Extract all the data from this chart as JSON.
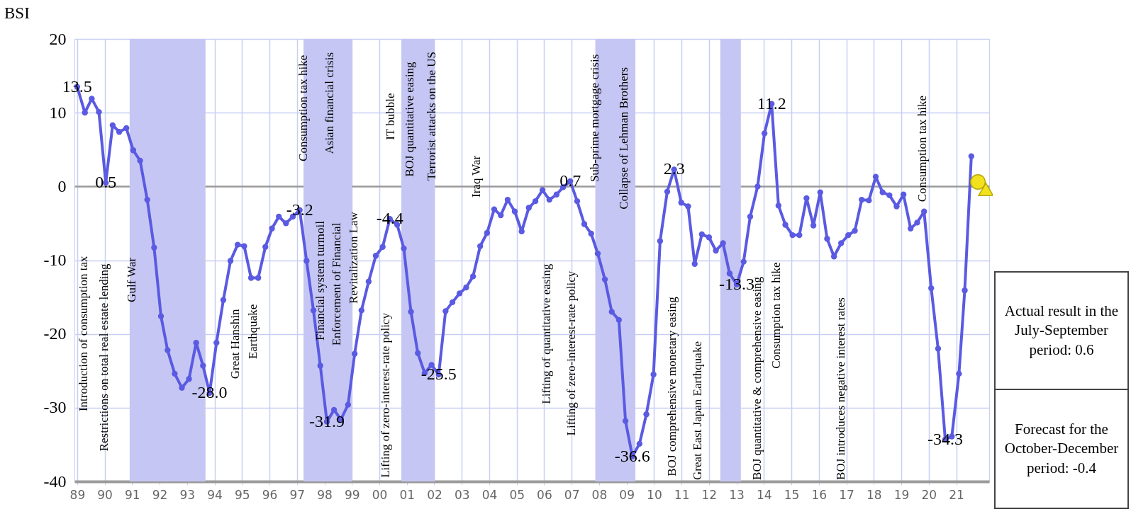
{
  "chart_data": {
    "type": "line",
    "ylabel": "BSI",
    "grid": true,
    "marker": "circle",
    "xlim": [
      1988.9,
      2022.2
    ],
    "ylim": [
      -40,
      20
    ],
    "yticks": [
      -40,
      -30,
      -20,
      -10,
      0,
      10,
      20
    ],
    "xticks": [
      {
        "value": 1989,
        "label": "89"
      },
      {
        "value": 1990,
        "label": "90"
      },
      {
        "value": 1991,
        "label": "91"
      },
      {
        "value": 1992,
        "label": "92"
      },
      {
        "value": 1993,
        "label": "93"
      },
      {
        "value": 1994,
        "label": "94"
      },
      {
        "value": 1995,
        "label": "95"
      },
      {
        "value": 1996,
        "label": "96"
      },
      {
        "value": 1997,
        "label": "97"
      },
      {
        "value": 1998,
        "label": "98"
      },
      {
        "value": 1999,
        "label": "99"
      },
      {
        "value": 2000,
        "label": "00"
      },
      {
        "value": 2001,
        "label": "01"
      },
      {
        "value": 2002,
        "label": "02"
      },
      {
        "value": 2003,
        "label": "03"
      },
      {
        "value": 2004,
        "label": "04"
      },
      {
        "value": 2005,
        "label": "05"
      },
      {
        "value": 2006,
        "label": "06"
      },
      {
        "value": 2007,
        "label": "07"
      },
      {
        "value": 2008,
        "label": "08"
      },
      {
        "value": 2009,
        "label": "09"
      },
      {
        "value": 2010,
        "label": "10"
      },
      {
        "value": 2011,
        "label": "11"
      },
      {
        "value": 2012,
        "label": "12"
      },
      {
        "value": 2013,
        "label": "13"
      },
      {
        "value": 2014,
        "label": "14"
      },
      {
        "value": 2015,
        "label": "15"
      },
      {
        "value": 2016,
        "label": "16"
      },
      {
        "value": 2017,
        "label": "17"
      },
      {
        "value": 2018,
        "label": "18"
      },
      {
        "value": 2019,
        "label": "19"
      },
      {
        "value": 2020,
        "label": "20"
      },
      {
        "value": 2021,
        "label": "21"
      }
    ],
    "series": [
      {
        "color": "#5a5ae2",
        "x": [
          1989.0,
          1989.28,
          1989.53,
          1989.79,
          1990.04,
          1990.29,
          1990.53,
          1990.79,
          1991.04,
          1991.29,
          1991.55,
          1991.8,
          1992.05,
          1992.29,
          1992.55,
          1992.81,
          1993.07,
          1993.33,
          1993.58,
          1993.82,
          1994.07,
          1994.32,
          1994.58,
          1994.84,
          1995.08,
          1995.33,
          1995.59,
          1995.85,
          1996.09,
          1996.34,
          1996.6,
          1996.85,
          1997.1,
          1997.35,
          1997.6,
          1997.85,
          1998.09,
          1998.35,
          1998.6,
          1998.86,
          1999.1,
          1999.35,
          1999.61,
          1999.87,
          2000.12,
          2000.38,
          2000.65,
          2000.89,
          2001.15,
          2001.4,
          2001.65,
          2001.9,
          2002.16,
          2002.41,
          2002.66,
          2002.92,
          2003.16,
          2003.41,
          2003.67,
          2003.92,
          2004.18,
          2004.42,
          2004.67,
          2004.93,
          2005.18,
          2005.44,
          2005.68,
          2005.94,
          2006.19,
          2006.45,
          2006.69,
          2006.95,
          2007.2,
          2007.46,
          2007.71,
          2007.95,
          2008.21,
          2008.46,
          2008.72,
          2008.96,
          2009.21,
          2009.47,
          2009.72,
          2009.98,
          2010.22,
          2010.48,
          2010.73,
          2010.99,
          2011.24,
          2011.48,
          2011.74,
          2012.0,
          2012.25,
          2012.51,
          2012.75,
          2013.01,
          2013.26,
          2013.5,
          2013.77,
          2014.02,
          2014.28,
          2014.53,
          2014.78,
          2015.04,
          2015.29,
          2015.55,
          2015.8,
          2016.05,
          2016.3,
          2016.55,
          2016.81,
          2017.07,
          2017.31,
          2017.56,
          2017.82,
          2018.07,
          2018.32,
          2018.57,
          2018.83,
          2019.08,
          2019.34,
          2019.58,
          2019.83,
          2020.09,
          2020.34,
          2020.6,
          2020.84,
          2021.1,
          2021.31,
          2021.55
        ],
        "values": [
          13.5,
          10.0,
          11.9,
          10.1,
          0.5,
          8.3,
          7.4,
          7.9,
          4.9,
          3.5,
          -1.8,
          -8.3,
          -17.6,
          -22.2,
          -25.4,
          -27.3,
          -26.1,
          -21.2,
          -24.3,
          -28.0,
          -21.2,
          -15.4,
          -10.1,
          -7.9,
          -8.1,
          -12.4,
          -12.4,
          -8.2,
          -5.7,
          -4.1,
          -5.0,
          -4.1,
          -3.2,
          -10.1,
          -16.8,
          -24.3,
          -31.9,
          -30.3,
          -31.6,
          -29.6,
          -22.7,
          -16.8,
          -12.9,
          -9.4,
          -8.2,
          -4.4,
          -5.2,
          -8.4,
          -17.0,
          -22.6,
          -25.3,
          -24.2,
          -25.5,
          -16.9,
          -15.7,
          -14.5,
          -13.7,
          -12.2,
          -8.1,
          -6.3,
          -3.1,
          -3.9,
          -1.8,
          -3.4,
          -6.1,
          -2.9,
          -2.0,
          -0.5,
          -1.8,
          -1.1,
          -0.1,
          0.7,
          -2.0,
          -5.1,
          -6.4,
          -9.1,
          -12.6,
          -17.0,
          -18.1,
          -31.8,
          -36.6,
          -34.9,
          -30.9,
          -25.5,
          -7.4,
          -0.7,
          2.3,
          -2.2,
          -2.7,
          -10.5,
          -6.5,
          -6.9,
          -8.7,
          -7.7,
          -11.8,
          -13.3,
          -10.2,
          -4.1,
          0.0,
          7.2,
          11.2,
          -2.6,
          -5.2,
          -6.6,
          -6.6,
          -1.6,
          -5.3,
          -0.8,
          -7.1,
          -9.5,
          -7.7,
          -6.6,
          -6.0,
          -1.8,
          -1.9,
          1.3,
          -0.8,
          -1.2,
          -2.7,
          -1.1,
          -5.7,
          -4.9,
          -3.4,
          -13.8,
          -22.0,
          -34.3,
          -33.9,
          -25.4,
          -14.1,
          4.1
        ],
        "value_labels": [
          "13.5",
          null,
          null,
          null,
          "0.5",
          null,
          null,
          null,
          null,
          null,
          null,
          null,
          null,
          null,
          null,
          null,
          null,
          null,
          null,
          "-28.0",
          null,
          null,
          null,
          null,
          null,
          null,
          null,
          null,
          null,
          null,
          null,
          null,
          "-3.2",
          null,
          null,
          null,
          "-31.9",
          null,
          null,
          null,
          null,
          null,
          null,
          null,
          null,
          "-4.4",
          null,
          null,
          null,
          null,
          null,
          null,
          "-25.5",
          null,
          null,
          null,
          null,
          null,
          null,
          null,
          null,
          null,
          null,
          null,
          null,
          null,
          null,
          null,
          null,
          null,
          null,
          "0.7",
          null,
          null,
          null,
          null,
          null,
          null,
          null,
          null,
          "-36.6",
          null,
          null,
          null,
          null,
          null,
          "2.3",
          null,
          null,
          null,
          null,
          null,
          null,
          null,
          null,
          "-13.3",
          null,
          null,
          null,
          null,
          "11.2",
          null,
          null,
          null,
          null,
          null,
          null,
          null,
          null,
          null,
          null,
          null,
          null,
          null,
          null,
          null,
          null,
          null,
          null,
          null,
          null,
          null,
          null,
          null,
          null,
          "-34.3",
          null,
          null,
          null,
          null
        ]
      },
      {
        "type": "scatter",
        "color": "#f2e21e",
        "marker": "circle",
        "x": [
          2021.79
        ],
        "values": [
          0.6
        ]
      },
      {
        "type": "scatter",
        "color": "#f2e21e",
        "marker": "triangle",
        "x": [
          2022.08
        ],
        "values": [
          -0.4
        ]
      }
    ],
    "bands": [
      {
        "axis": "x",
        "from": 1990.91,
        "to": 1993.67,
        "color": "#c6c6f4"
      },
      {
        "axis": "x",
        "from": 1997.24,
        "to": 1999.0,
        "color": "#c6c6f4"
      },
      {
        "axis": "x",
        "from": 2000.8,
        "to": 2002.02,
        "color": "#c6c6f4"
      },
      {
        "axis": "x",
        "from": 2007.86,
        "to": 2009.32,
        "color": "#c6c6f4"
      },
      {
        "axis": "x",
        "from": 2012.41,
        "to": 2013.16,
        "color": "#c6c6f4"
      }
    ],
    "annotations": [
      "Introduction of consumption tax",
      "Restrictions on total real estate lending",
      "Gulf War",
      "Great Hanshin",
      "Earthquake",
      "Consumption tax hike",
      "Asian financial crisis",
      "Financial system turmoil",
      "Enforcement of Financial",
      "Revitalization Law",
      "Lifting of zero-interest-rate policy",
      "IT bubble",
      "BOJ quantitative easing",
      "Terrorist attacks on the US",
      "Iraq War",
      "Lifting of quantitative easing",
      "Lifting of zero-interest-rate policy",
      "Sub-prime mortgage crisis",
      "Collapse of Lehman Brothers",
      "BOJ comprehensive monetary easing",
      "Great East Japan Earthquake",
      "BOJ quantitative & comprehensive easing",
      "Consumption tax hike",
      "BOJ introduces negative interest rates",
      "Consumption tax hike",
      "Actual result in the July-September period: 0.6",
      "Forecast for the October-December period: -0.4"
    ]
  }
}
